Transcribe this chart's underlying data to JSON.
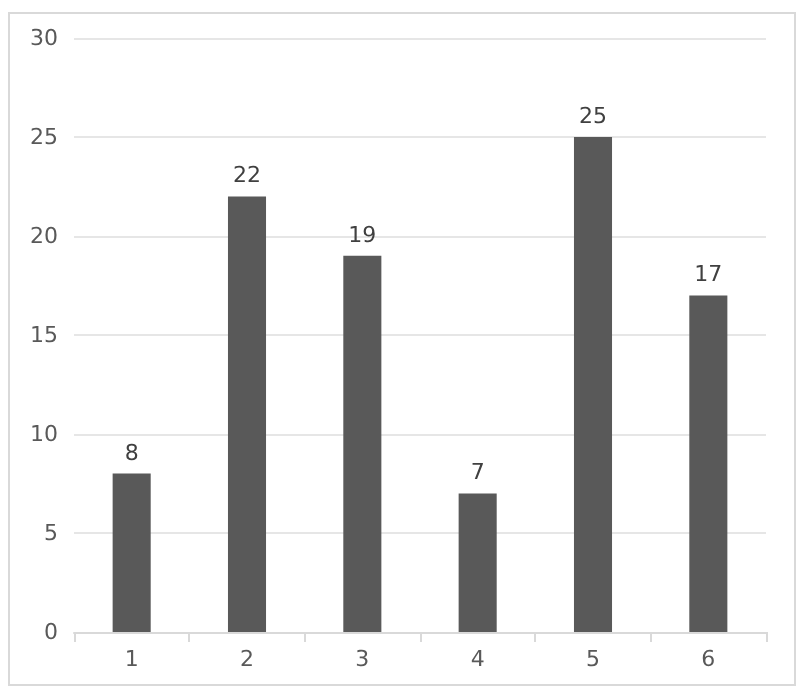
{
  "chart_data": {
    "type": "bar",
    "categories": [
      "1",
      "2",
      "3",
      "4",
      "5",
      "6"
    ],
    "values": [
      8,
      22,
      19,
      7,
      25,
      17
    ],
    "color": "#595959",
    "ylim": [
      0,
      30
    ],
    "yticks": [
      0,
      5,
      10,
      15,
      20,
      25,
      30
    ],
    "grid": "y",
    "data_labels": true
  }
}
